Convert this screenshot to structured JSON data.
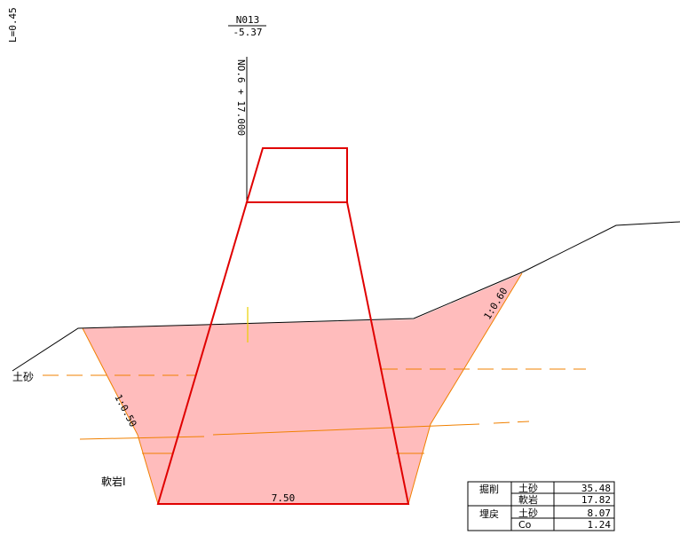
{
  "station": {
    "name": "N013",
    "elevation": "-5.37",
    "chainage": "NO.6 + 17.000"
  },
  "left_label": "L=0.45",
  "layers": {
    "soil_label": "土砂",
    "soft_rock_label": "軟岩Ⅰ"
  },
  "slopes": {
    "left": "1:0.50",
    "right": "1:0.60"
  },
  "bottom_width": "7.50",
  "quantities": {
    "rows": [
      {
        "group": "掘削",
        "material": "土砂",
        "value": "35.48"
      },
      {
        "group": "",
        "material": "軟岩",
        "value": "17.82"
      },
      {
        "group": "埋戻",
        "material": "土砂",
        "value": "8.07"
      },
      {
        "group": "",
        "material": "Co",
        "value": "1.24"
      }
    ]
  },
  "colors": {
    "excavation_fill": "#ffbcbc",
    "structure": "#e00000",
    "slope_line": "#f08000",
    "ground": "#000000"
  }
}
